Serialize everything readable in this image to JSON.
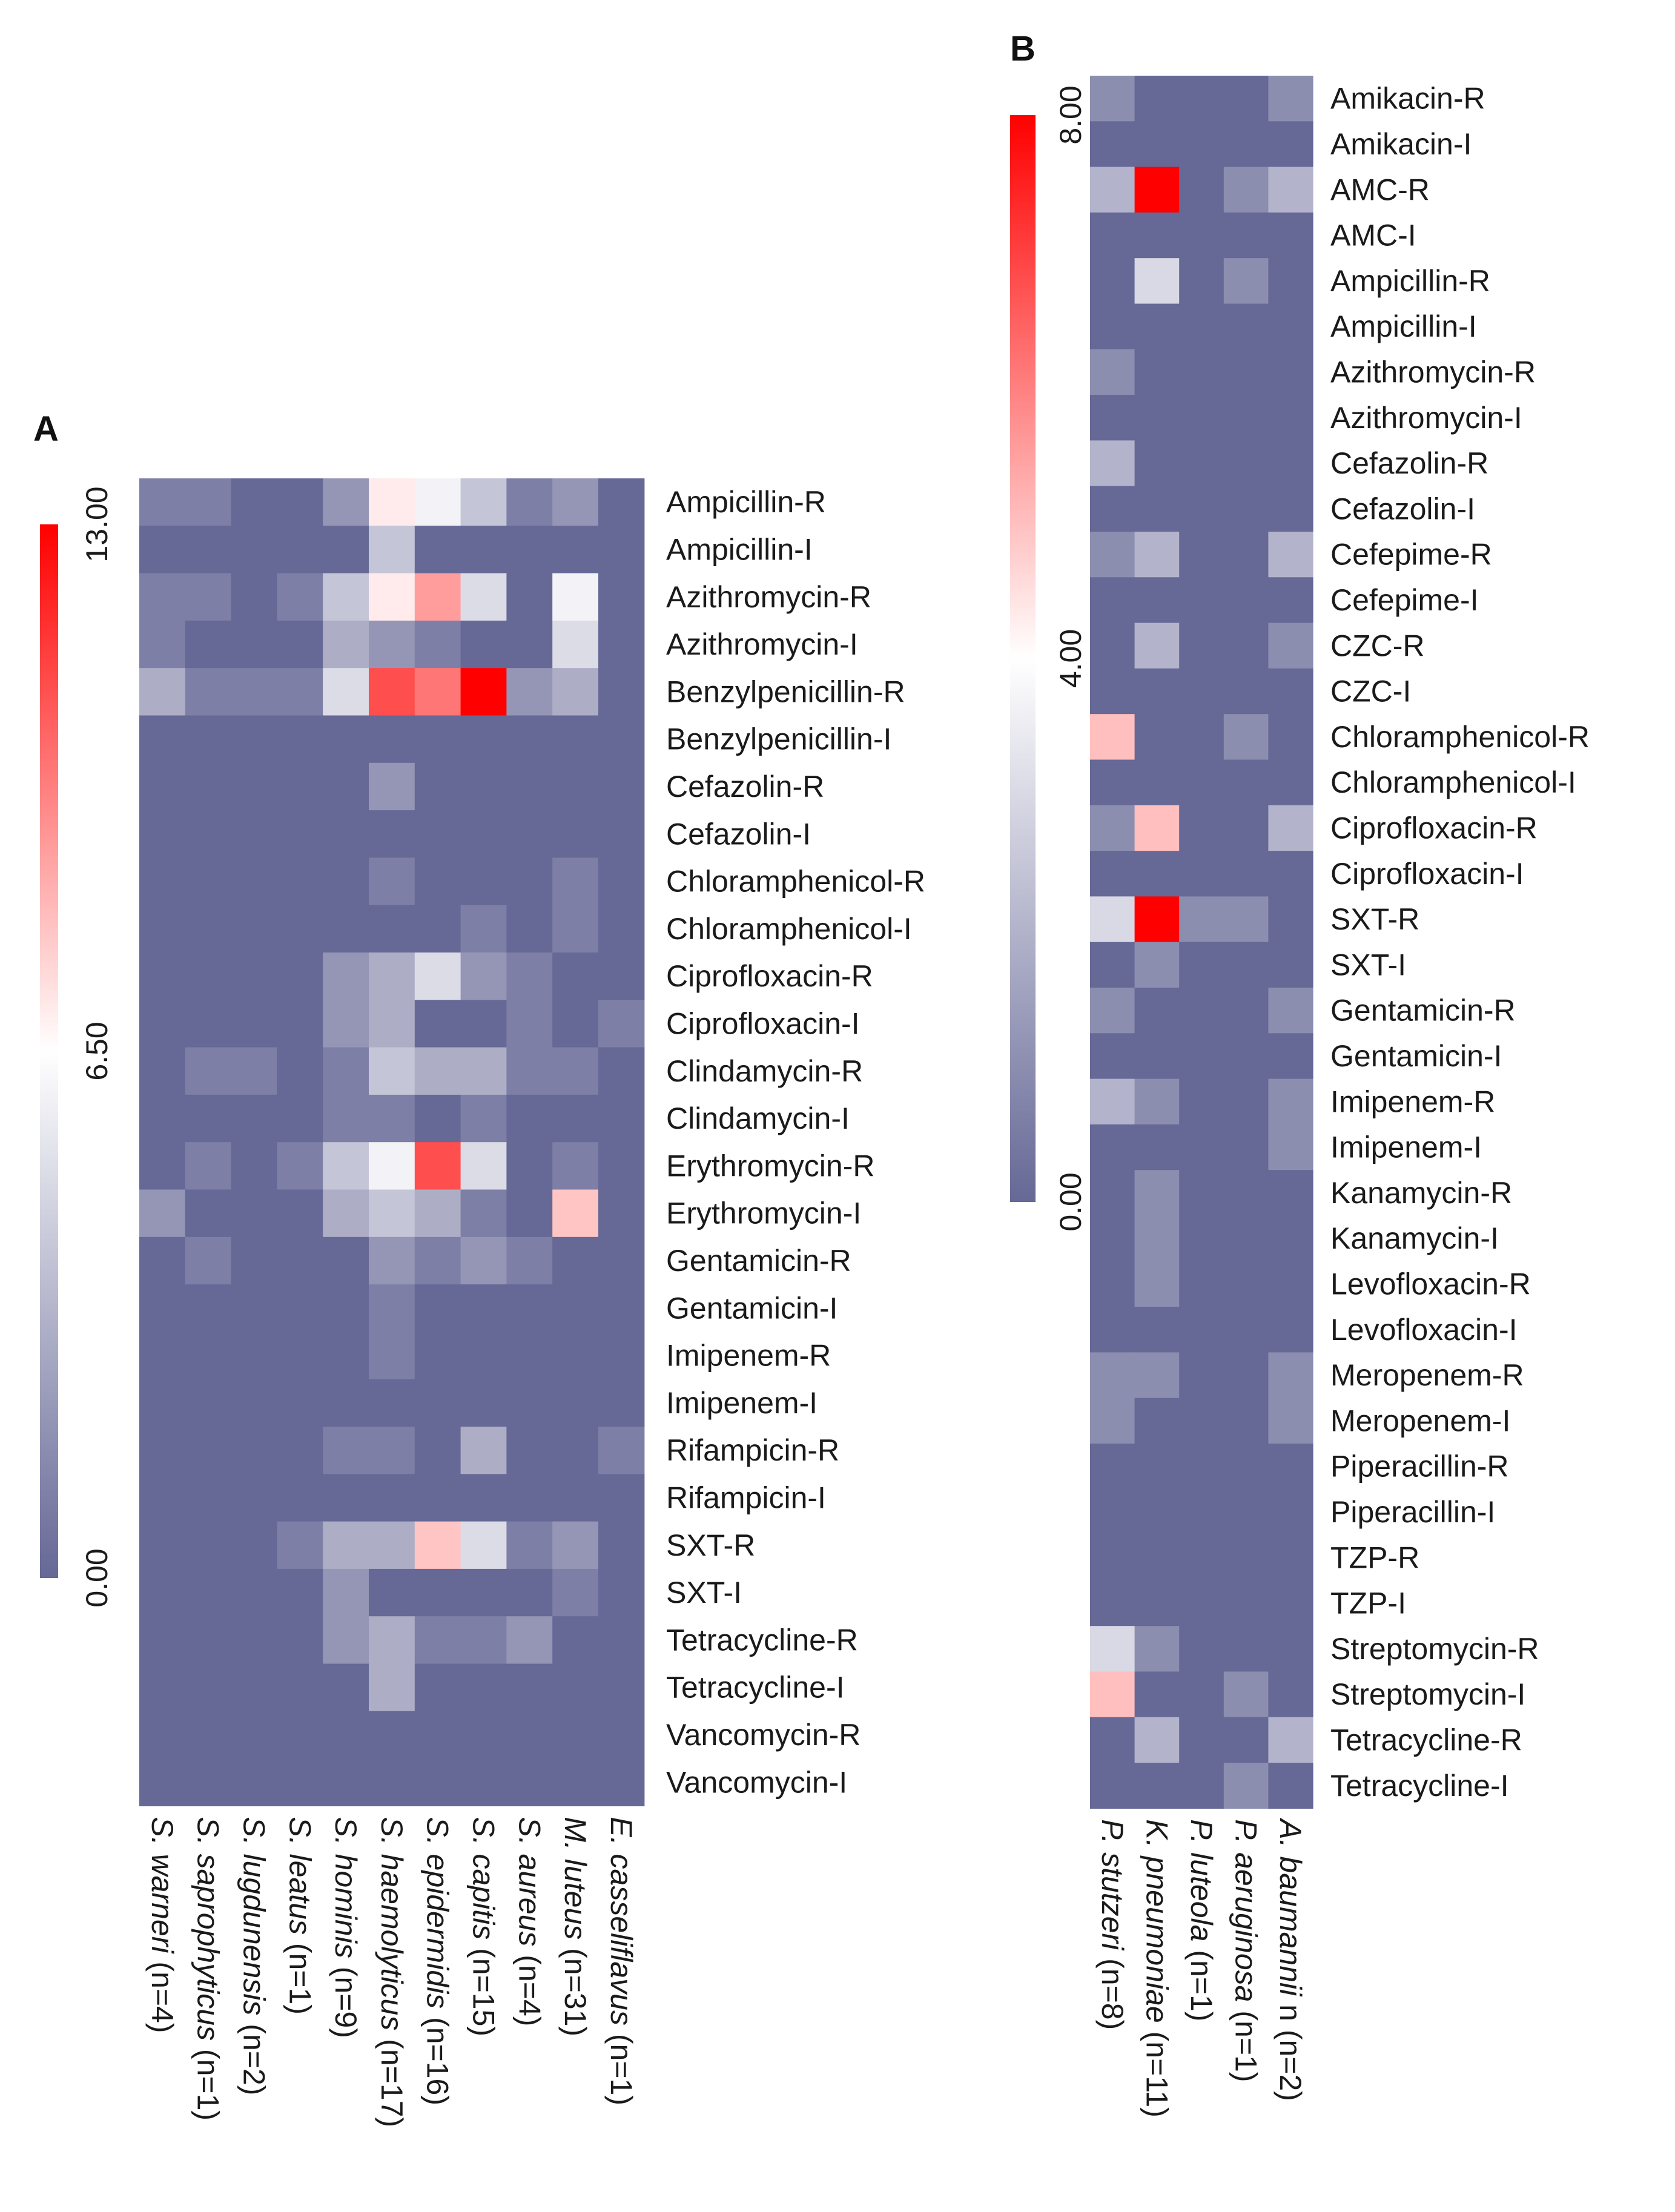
{
  "colors": {
    "low": "#666896",
    "mid": "#ffffff",
    "high": "#ff0000"
  },
  "chart_data": [
    {
      "panel": "A",
      "type": "heatmap",
      "scale_max": 13,
      "scale_ticks": [
        "0.00",
        "6.50",
        "13.00"
      ],
      "rows": [
        "Ampicillin-R",
        "Ampicillin-I",
        "Azithromycin-R",
        "Azithromycin-I",
        "Benzylpenicillin-R",
        "Benzylpenicillin-I",
        "Cefazolin-R",
        "Cefazolin-I",
        "Chloramphenicol-R",
        "Chloramphenicol-I",
        "Ciprofloxacin-R",
        "Ciprofloxacin-I",
        "Clindamycin-R",
        "Clindamycin-I",
        "Erythromycin-R",
        "Erythromycin-I",
        "Gentamicin-R",
        "Gentamicin-I",
        "Imipenem-R",
        "Imipenem-I",
        "Rifampicin-R",
        "Rifampicin-I",
        "SXT-R",
        "SXT-I",
        "Tetracycline-R",
        "Tetracycline-I",
        "Vancomycin-R",
        "Vancomycin-I"
      ],
      "columns": [
        {
          "name": "S. warneri",
          "count": " (n=4)"
        },
        {
          "name": "S. saprophyticus",
          "count": " (n=1)"
        },
        {
          "name": "S. lugdunensis",
          "count": " (n=2)"
        },
        {
          "name": "S. leatus",
          "count": " (n=1)"
        },
        {
          "name": "S. hominis",
          "count": " (n=9)"
        },
        {
          "name": "S. haemolyticus",
          "count": " (n=17)"
        },
        {
          "name": "S. epidermidis",
          "count": " (n=16)"
        },
        {
          "name": "S. capitis",
          "count": " (n=15)"
        },
        {
          "name": "S. aureus",
          "count": " (n=4)"
        },
        {
          "name": "M. luteus",
          "count": " (n=31)"
        },
        {
          "name": "E. casseliflavus",
          "count": " (n=1)"
        }
      ],
      "values": [
        [
          1,
          1,
          0,
          0,
          2,
          7,
          6,
          4,
          1,
          2,
          0
        ],
        [
          0,
          0,
          0,
          0,
          0,
          4,
          0,
          0,
          0,
          0,
          0
        ],
        [
          1,
          1,
          0,
          1,
          4,
          7,
          9,
          5,
          0,
          6,
          0
        ],
        [
          1,
          0,
          0,
          0,
          3,
          2,
          1,
          0,
          0,
          5,
          0
        ],
        [
          3,
          1,
          1,
          1,
          5,
          11,
          10,
          13,
          2,
          3,
          0
        ],
        [
          0,
          0,
          0,
          0,
          0,
          0,
          0,
          0,
          0,
          0,
          0
        ],
        [
          0,
          0,
          0,
          0,
          0,
          2,
          0,
          0,
          0,
          0,
          0
        ],
        [
          0,
          0,
          0,
          0,
          0,
          0,
          0,
          0,
          0,
          0,
          0
        ],
        [
          0,
          0,
          0,
          0,
          0,
          1,
          0,
          0,
          0,
          1,
          0
        ],
        [
          0,
          0,
          0,
          0,
          0,
          0,
          0,
          1,
          0,
          1,
          0
        ],
        [
          0,
          0,
          0,
          0,
          2,
          3,
          5,
          2,
          1,
          0,
          0
        ],
        [
          0,
          0,
          0,
          0,
          2,
          3,
          0,
          0,
          1,
          0,
          1
        ],
        [
          0,
          1,
          1,
          0,
          1,
          4,
          3,
          3,
          1,
          1,
          0
        ],
        [
          0,
          0,
          0,
          0,
          1,
          1,
          0,
          1,
          0,
          0,
          0
        ],
        [
          0,
          1,
          0,
          1,
          4,
          6,
          11,
          5,
          0,
          1,
          0
        ],
        [
          2,
          0,
          0,
          0,
          3,
          4,
          3,
          1,
          0,
          8,
          0
        ],
        [
          0,
          1,
          0,
          0,
          0,
          2,
          1,
          2,
          1,
          0,
          0
        ],
        [
          0,
          0,
          0,
          0,
          0,
          1,
          0,
          0,
          0,
          0,
          0
        ],
        [
          0,
          0,
          0,
          0,
          0,
          1,
          0,
          0,
          0,
          0,
          0
        ],
        [
          0,
          0,
          0,
          0,
          0,
          0,
          0,
          0,
          0,
          0,
          0
        ],
        [
          0,
          0,
          0,
          0,
          1,
          1,
          0,
          3,
          0,
          0,
          1
        ],
        [
          0,
          0,
          0,
          0,
          0,
          0,
          0,
          0,
          0,
          0,
          0
        ],
        [
          0,
          0,
          0,
          1,
          3,
          3,
          8,
          5,
          1,
          2,
          0
        ],
        [
          0,
          0,
          0,
          0,
          2,
          0,
          0,
          0,
          0,
          1,
          0
        ],
        [
          0,
          0,
          0,
          0,
          2,
          3,
          1,
          1,
          2,
          0,
          0
        ],
        [
          0,
          0,
          0,
          0,
          0,
          3,
          0,
          0,
          0,
          0,
          0
        ],
        [
          0,
          0,
          0,
          0,
          0,
          0,
          0,
          0,
          0,
          0,
          0
        ],
        [
          0,
          0,
          0,
          0,
          0,
          0,
          0,
          0,
          0,
          0,
          0
        ]
      ]
    },
    {
      "panel": "B",
      "type": "heatmap",
      "scale_max": 8,
      "scale_ticks": [
        "0.00",
        "4.00",
        "8.00"
      ],
      "rows": [
        "Amikacin-R",
        "Amikacin-I",
        "AMC-R",
        "AMC-I",
        "Ampicillin-R",
        "Ampicillin-I",
        "Azithromycin-R",
        "Azithromycin-I",
        "Cefazolin-R",
        "Cefazolin-I",
        "Cefepime-R",
        "Cefepime-I",
        "CZC-R",
        "CZC-I",
        "Chloramphenicol-R",
        "Chloramphenicol-I",
        "Ciprofloxacin-R",
        "Ciprofloxacin-I",
        "SXT-R",
        "SXT-I",
        "Gentamicin-R",
        "Gentamicin-I",
        "Imipenem-R",
        "Imipenem-I",
        "Kanamycin-R",
        "Kanamycin-I",
        "Levofloxacin-R",
        "Levofloxacin-I",
        "Meropenem-R",
        "Meropenem-I",
        "Piperacillin-R",
        "Piperacillin-I",
        "TZP-R",
        "TZP-I",
        "Streptomycin-R",
        "Streptomycin-I",
        "Tetracycline-R",
        "Tetracycline-I"
      ],
      "columns": [
        {
          "name": "P. stutzeri",
          "count": " (n=8)"
        },
        {
          "name": "K. pneumoniae",
          "count": " (n=11)"
        },
        {
          "name": "P. luteola",
          "count": " (n=1)"
        },
        {
          "name": "P. aeruginosa",
          "count": "  (n=1)"
        },
        {
          "name": "A. baumannii",
          "count": " n (n=2)"
        }
      ],
      "values": [
        [
          1,
          0,
          0,
          0,
          1
        ],
        [
          0,
          0,
          0,
          0,
          0
        ],
        [
          2,
          8,
          0,
          1,
          2
        ],
        [
          0,
          0,
          0,
          0,
          0
        ],
        [
          0,
          3,
          0,
          1,
          0
        ],
        [
          0,
          0,
          0,
          0,
          0
        ],
        [
          1,
          0,
          0,
          0,
          0
        ],
        [
          0,
          0,
          0,
          0,
          0
        ],
        [
          2,
          0,
          0,
          0,
          0
        ],
        [
          0,
          0,
          0,
          0,
          0
        ],
        [
          1,
          2,
          0,
          0,
          2
        ],
        [
          0,
          0,
          0,
          0,
          0
        ],
        [
          0,
          2,
          0,
          0,
          1
        ],
        [
          0,
          0,
          0,
          0,
          0
        ],
        [
          5,
          0,
          0,
          1,
          0
        ],
        [
          0,
          0,
          0,
          0,
          0
        ],
        [
          1,
          5,
          0,
          0,
          2
        ],
        [
          0,
          0,
          0,
          0,
          0
        ],
        [
          3,
          8,
          1,
          1,
          0
        ],
        [
          0,
          1,
          0,
          0,
          0
        ],
        [
          1,
          0,
          0,
          0,
          1
        ],
        [
          0,
          0,
          0,
          0,
          0
        ],
        [
          2,
          1,
          0,
          0,
          1
        ],
        [
          0,
          0,
          0,
          0,
          1
        ],
        [
          0,
          1,
          0,
          0,
          0
        ],
        [
          0,
          1,
          0,
          0,
          0
        ],
        [
          0,
          1,
          0,
          0,
          0
        ],
        [
          0,
          0,
          0,
          0,
          0
        ],
        [
          1,
          1,
          0,
          0,
          1
        ],
        [
          1,
          0,
          0,
          0,
          1
        ],
        [
          0,
          0,
          0,
          0,
          0
        ],
        [
          0,
          0,
          0,
          0,
          0
        ],
        [
          0,
          0,
          0,
          0,
          0
        ],
        [
          0,
          0,
          0,
          0,
          0
        ],
        [
          3,
          1,
          0,
          0,
          0
        ],
        [
          5,
          0,
          0,
          1,
          0
        ],
        [
          0,
          2,
          0,
          0,
          2
        ],
        [
          0,
          0,
          0,
          1,
          0
        ]
      ]
    }
  ]
}
